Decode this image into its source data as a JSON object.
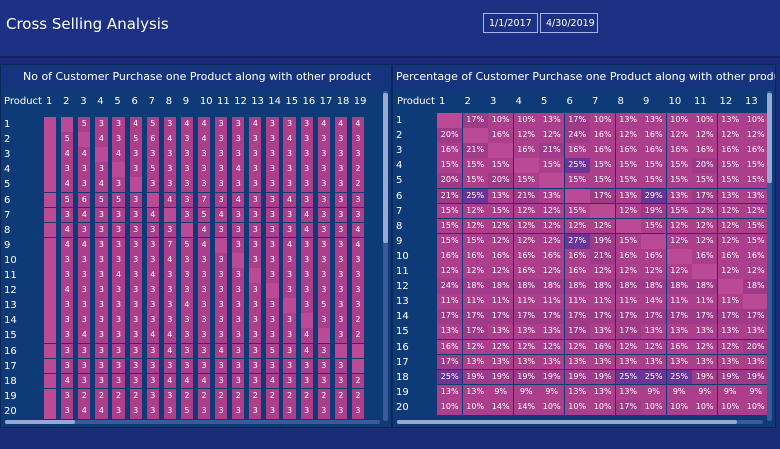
{
  "app": {
    "title": "Cross Selling Analysis",
    "date_from": "1/1/2017",
    "date_to": "4/30/2019"
  },
  "colors": {
    "cell": "#ad3e8c",
    "cell_alt": "#9f3a88",
    "cell_dark": "#6a3596",
    "cell_light": "#bb4a96",
    "bg": "#1a2b78",
    "panel": "#0f3a78"
  },
  "counts": {
    "title": "No of Customer Purchase one Product along with other product",
    "row_header": "Product",
    "columns": [
      "1",
      "2",
      "3",
      "4",
      "5",
      "6",
      "7",
      "8",
      "9",
      "10",
      "11",
      "12",
      "13",
      "14",
      "15",
      "16",
      "17",
      "18",
      "19"
    ],
    "rows": [
      "1",
      "2",
      "3",
      "4",
      "5",
      "6",
      "7",
      "8",
      "9",
      "10",
      "11",
      "12",
      "13",
      "14",
      "15",
      "16",
      "17",
      "18",
      "19",
      "20"
    ],
    "cells": [
      [
        "",
        "",
        "5",
        "3",
        "3",
        "4",
        "5",
        "3",
        "4",
        "4",
        "3",
        "3",
        "4",
        "3",
        "3",
        "3",
        "4",
        "4",
        "4"
      ],
      [
        "",
        "5",
        "",
        "4",
        "3",
        "5",
        "6",
        "4",
        "3",
        "4",
        "3",
        "3",
        "3",
        "3",
        "4",
        "3",
        "3",
        "3",
        "3"
      ],
      [
        "",
        "4",
        "4",
        "",
        "4",
        "3",
        "3",
        "3",
        "3",
        "3",
        "3",
        "3",
        "3",
        "3",
        "3",
        "3",
        "3",
        "3",
        "3"
      ],
      [
        "",
        "3",
        "3",
        "3",
        "",
        "3",
        "5",
        "3",
        "3",
        "3",
        "3",
        "4",
        "3",
        "3",
        "3",
        "3",
        "3",
        "3",
        "2"
      ],
      [
        "",
        "4",
        "3",
        "4",
        "3",
        "",
        "3",
        "3",
        "3",
        "3",
        "3",
        "3",
        "3",
        "3",
        "3",
        "3",
        "3",
        "3",
        "2"
      ],
      [
        "",
        "5",
        "6",
        "5",
        "5",
        "3",
        "",
        "4",
        "3",
        "7",
        "3",
        "4",
        "3",
        "3",
        "4",
        "3",
        "3",
        "3",
        "3"
      ],
      [
        "",
        "3",
        "4",
        "3",
        "3",
        "3",
        "4",
        "",
        "3",
        "5",
        "4",
        "3",
        "3",
        "3",
        "3",
        "4",
        "3",
        "3",
        "3"
      ],
      [
        "",
        "4",
        "3",
        "3",
        "3",
        "3",
        "3",
        "3",
        "",
        "4",
        "3",
        "3",
        "3",
        "3",
        "3",
        "4",
        "3",
        "3",
        "4"
      ],
      [
        "",
        "4",
        "4",
        "3",
        "3",
        "3",
        "3",
        "7",
        "5",
        "4",
        "",
        "3",
        "3",
        "3",
        "4",
        "3",
        "3",
        "3",
        "4"
      ],
      [
        "",
        "3",
        "3",
        "3",
        "3",
        "3",
        "3",
        "4",
        "3",
        "3",
        "3",
        "",
        "3",
        "3",
        "3",
        "3",
        "3",
        "3",
        "3"
      ],
      [
        "",
        "3",
        "3",
        "3",
        "4",
        "3",
        "4",
        "3",
        "3",
        "3",
        "3",
        "3",
        "",
        "3",
        "3",
        "3",
        "3",
        "3",
        "3"
      ],
      [
        "",
        "4",
        "3",
        "3",
        "3",
        "3",
        "3",
        "3",
        "3",
        "3",
        "3",
        "3",
        "3",
        "",
        "3",
        "3",
        "3",
        "3",
        "3"
      ],
      [
        "",
        "3",
        "3",
        "3",
        "3",
        "3",
        "3",
        "3",
        "4",
        "3",
        "3",
        "3",
        "3",
        "3",
        "",
        "3",
        "5",
        "3",
        "3"
      ],
      [
        "",
        "3",
        "3",
        "3",
        "3",
        "3",
        "3",
        "3",
        "3",
        "3",
        "3",
        "3",
        "3",
        "3",
        "3",
        "",
        "3",
        "3",
        "2"
      ],
      [
        "",
        "3",
        "4",
        "3",
        "3",
        "3",
        "4",
        "4",
        "3",
        "3",
        "3",
        "3",
        "3",
        "3",
        "3",
        "4",
        "",
        "3",
        "2"
      ],
      [
        "",
        "3",
        "3",
        "3",
        "3",
        "3",
        "3",
        "4",
        "3",
        "3",
        "4",
        "3",
        "3",
        "5",
        "3",
        "4",
        "3",
        "",
        ""
      ],
      [
        "",
        "3",
        "3",
        "3",
        "3",
        "3",
        "3",
        "3",
        "3",
        "3",
        "3",
        "3",
        "3",
        "3",
        "3",
        "3",
        "3",
        "3",
        ""
      ],
      [
        "",
        "4",
        "3",
        "3",
        "3",
        "3",
        "3",
        "4",
        "4",
        "4",
        "3",
        "3",
        "3",
        "4",
        "3",
        "3",
        "3",
        "3",
        "2"
      ],
      [
        "",
        "3",
        "2",
        "2",
        "2",
        "2",
        "3",
        "3",
        "2",
        "2",
        "2",
        "2",
        "2",
        "2",
        "2",
        "2",
        "2",
        "2",
        "2"
      ],
      [
        "",
        "3",
        "4",
        "4",
        "3",
        "3",
        "3",
        "3",
        "5",
        "3",
        "3",
        "3",
        "3",
        "3",
        "3",
        "3",
        "3",
        "3",
        "3"
      ]
    ]
  },
  "percent": {
    "title": "Percentage of Customer Purchase one Product along with other product",
    "row_header": "Product",
    "columns": [
      "1",
      "2",
      "3",
      "4",
      "5",
      "6",
      "7",
      "8",
      "9",
      "10",
      "11",
      "12",
      "13"
    ],
    "rows": [
      "1",
      "2",
      "3",
      "4",
      "5",
      "6",
      "7",
      "8",
      "9",
      "10",
      "11",
      "12",
      "13",
      "14",
      "15",
      "16",
      "17",
      "18",
      "19",
      "20"
    ],
    "cells": [
      [
        "",
        "17%",
        "10%",
        "10%",
        "13%",
        "17%",
        "10%",
        "13%",
        "13%",
        "10%",
        "10%",
        "13%",
        "10%"
      ],
      [
        "20%",
        "",
        "16%",
        "12%",
        "12%",
        "24%",
        "16%",
        "12%",
        "16%",
        "12%",
        "12%",
        "12%",
        "12%"
      ],
      [
        "16%",
        "21%",
        "",
        "16%",
        "21%",
        "16%",
        "16%",
        "16%",
        "16%",
        "16%",
        "16%",
        "16%",
        "16%"
      ],
      [
        "15%",
        "15%",
        "15%",
        "",
        "15%",
        "25%",
        "15%",
        "15%",
        "15%",
        "15%",
        "20%",
        "15%",
        "15%"
      ],
      [
        "20%",
        "15%",
        "20%",
        "15%",
        "",
        "15%",
        "15%",
        "15%",
        "15%",
        "15%",
        "15%",
        "15%",
        "15%"
      ],
      [
        "21%",
        "25%",
        "13%",
        "21%",
        "13%",
        "",
        "17%",
        "13%",
        "29%",
        "13%",
        "17%",
        "13%",
        "13%"
      ],
      [
        "15%",
        "12%",
        "15%",
        "12%",
        "12%",
        "15%",
        "",
        "12%",
        "19%",
        "15%",
        "12%",
        "12%",
        "12%"
      ],
      [
        "15%",
        "12%",
        "12%",
        "12%",
        "12%",
        "12%",
        "12%",
        "",
        "15%",
        "12%",
        "12%",
        "12%",
        "15%"
      ],
      [
        "15%",
        "15%",
        "12%",
        "12%",
        "12%",
        "27%",
        "19%",
        "15%",
        "",
        "12%",
        "12%",
        "12%",
        "15%"
      ],
      [
        "16%",
        "16%",
        "16%",
        "16%",
        "16%",
        "16%",
        "21%",
        "16%",
        "16%",
        "",
        "16%",
        "16%",
        "16%"
      ],
      [
        "12%",
        "12%",
        "12%",
        "16%",
        "12%",
        "16%",
        "12%",
        "12%",
        "12%",
        "12%",
        "",
        "12%",
        "12%"
      ],
      [
        "24%",
        "18%",
        "18%",
        "18%",
        "18%",
        "18%",
        "18%",
        "18%",
        "18%",
        "18%",
        "18%",
        "",
        "18%"
      ],
      [
        "11%",
        "11%",
        "11%",
        "11%",
        "11%",
        "11%",
        "11%",
        "11%",
        "14%",
        "11%",
        "11%",
        "11%",
        ""
      ],
      [
        "17%",
        "17%",
        "17%",
        "17%",
        "17%",
        "17%",
        "17%",
        "17%",
        "17%",
        "17%",
        "17%",
        "17%",
        "17%"
      ],
      [
        "13%",
        "17%",
        "13%",
        "13%",
        "13%",
        "17%",
        "13%",
        "17%",
        "13%",
        "13%",
        "13%",
        "13%",
        "13%"
      ],
      [
        "16%",
        "12%",
        "12%",
        "12%",
        "12%",
        "12%",
        "16%",
        "12%",
        "12%",
        "16%",
        "12%",
        "12%",
        "20%"
      ],
      [
        "17%",
        "13%",
        "13%",
        "13%",
        "13%",
        "13%",
        "13%",
        "13%",
        "13%",
        "13%",
        "13%",
        "13%",
        "13%"
      ],
      [
        "25%",
        "19%",
        "19%",
        "19%",
        "19%",
        "19%",
        "19%",
        "25%",
        "25%",
        "25%",
        "19%",
        "19%",
        "19%"
      ],
      [
        "13%",
        "13%",
        "9%",
        "9%",
        "9%",
        "13%",
        "13%",
        "13%",
        "9%",
        "9%",
        "9%",
        "9%",
        "9%"
      ],
      [
        "10%",
        "10%",
        "14%",
        "14%",
        "10%",
        "10%",
        "10%",
        "17%",
        "10%",
        "10%",
        "10%",
        "10%",
        "10%"
      ]
    ]
  }
}
